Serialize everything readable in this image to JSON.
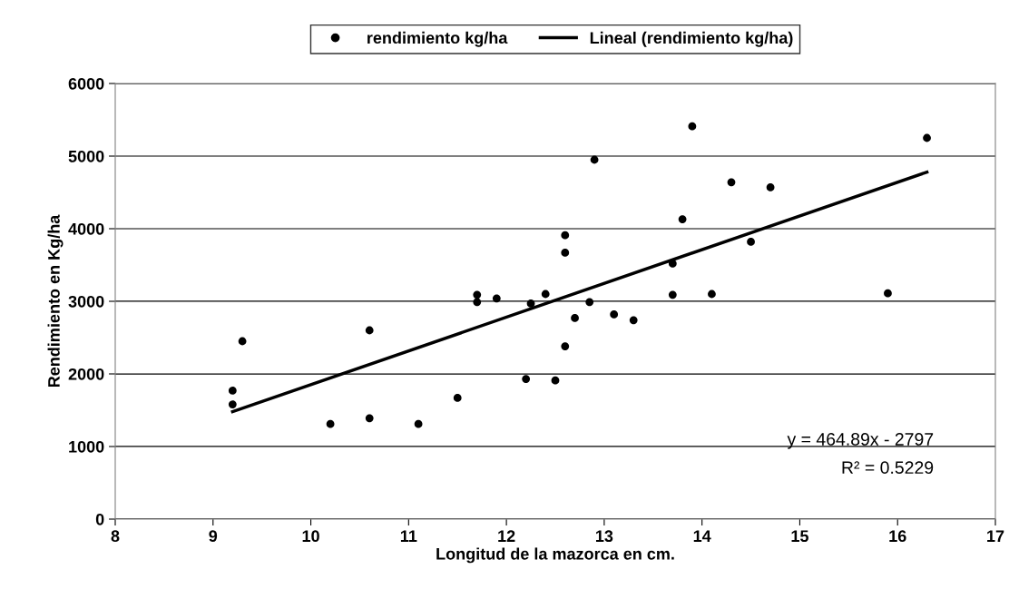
{
  "chart_data": {
    "type": "scatter",
    "xlabel": "Longitud de la mazorca en cm.",
    "ylabel": "Rendimiento en Kg/ha",
    "xlim": [
      8,
      17
    ],
    "xticks": [
      8,
      9,
      10,
      11,
      12,
      13,
      14,
      15,
      16,
      17
    ],
    "ylim": [
      0,
      6000
    ],
    "yticks": [
      0,
      1000,
      2000,
      3000,
      4000,
      5000,
      6000
    ],
    "grid": "y",
    "legend": "top",
    "series": [
      {
        "name": "rendimiento kg/ha",
        "marker": "circle",
        "color": "#000000",
        "x": [
          9.2,
          9.2,
          9.3,
          10.2,
          10.6,
          10.6,
          11.1,
          11.5,
          11.7,
          11.7,
          11.9,
          12.2,
          12.25,
          12.4,
          12.5,
          12.6,
          12.6,
          12.6,
          12.7,
          12.85,
          12.9,
          13.1,
          13.3,
          13.7,
          13.7,
          13.8,
          13.9,
          14.1,
          14.3,
          14.5,
          14.7,
          15.9,
          16.3
        ],
        "values": [
          1770,
          1580,
          2450,
          1310,
          2600,
          1390,
          1310,
          1670,
          3090,
          2990,
          3040,
          1930,
          2970,
          3100,
          1910,
          3910,
          3670,
          2380,
          2770,
          2990,
          4950,
          2820,
          2740,
          3520,
          3090,
          4130,
          5410,
          3100,
          4640,
          3820,
          4570,
          3110,
          5250
        ]
      },
      {
        "name": "Lineal (rendimiento kg/ha)",
        "type": "line",
        "marker": "none",
        "color": "#000000",
        "x": [
          9.2,
          16.3
        ],
        "values": [
          1480,
          4780
        ]
      }
    ],
    "annotations": [
      "y = 464.89x - 2797",
      "R² = 0.5229"
    ]
  }
}
